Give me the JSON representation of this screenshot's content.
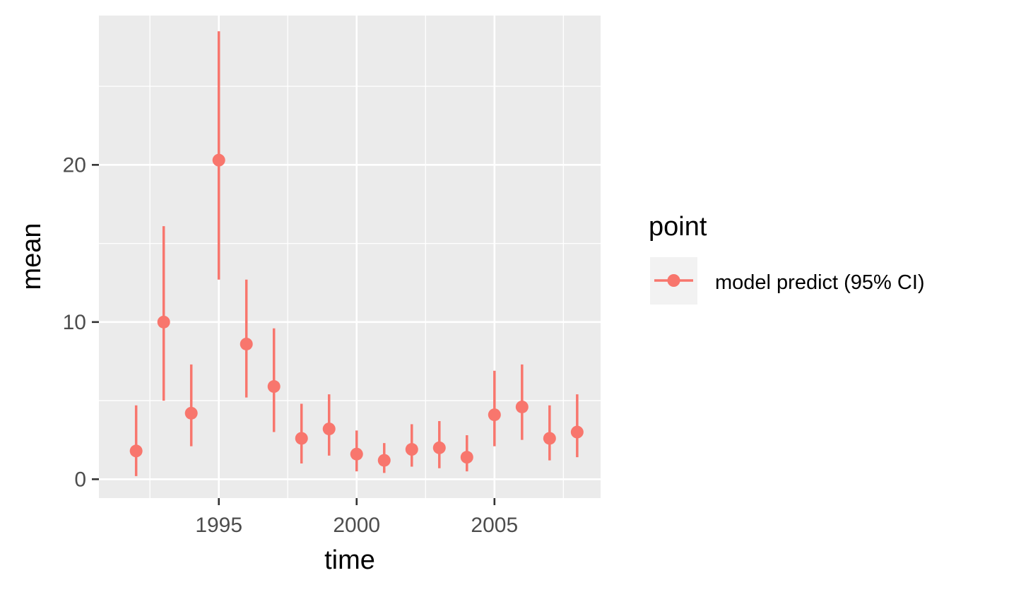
{
  "chart_data": {
    "type": "scatter",
    "title": "",
    "xlabel": "time",
    "ylabel": "mean",
    "xlim": [
      1990.65,
      2008.85
    ],
    "ylim": [
      -1.2,
      29.5
    ],
    "x_major_ticks": [
      1995,
      2000,
      2005
    ],
    "x_minor_ticks": [
      1992.5,
      1997.5,
      2002.5,
      2007.5
    ],
    "y_major_ticks": [
      0,
      10,
      20
    ],
    "y_minor_ticks": [
      5,
      15,
      25
    ],
    "grid": true,
    "legend": {
      "title": "point",
      "position": "right",
      "entries": [
        "model predict (95% CI)"
      ]
    },
    "series": [
      {
        "name": "model predict (95% CI)",
        "color": "#F8766D",
        "x": [
          1992,
          1993,
          1994,
          1995,
          1996,
          1997,
          1998,
          1999,
          2000,
          2001,
          2002,
          2003,
          2004,
          2005,
          2006,
          2007,
          2008
        ],
        "mean": [
          1.8,
          10.0,
          4.2,
          20.3,
          8.6,
          5.9,
          2.6,
          3.2,
          1.6,
          1.2,
          1.9,
          2.0,
          1.4,
          4.1,
          4.6,
          2.6,
          3.0
        ],
        "lower": [
          0.2,
          5.0,
          2.1,
          12.7,
          5.2,
          3.0,
          1.0,
          1.5,
          0.5,
          0.4,
          0.8,
          0.7,
          0.5,
          2.1,
          2.5,
          1.2,
          1.4
        ],
        "upper": [
          4.7,
          16.1,
          7.3,
          28.5,
          12.7,
          9.6,
          4.8,
          5.4,
          3.1,
          2.3,
          3.5,
          3.7,
          2.8,
          6.9,
          7.3,
          4.7,
          5.4
        ]
      }
    ]
  }
}
